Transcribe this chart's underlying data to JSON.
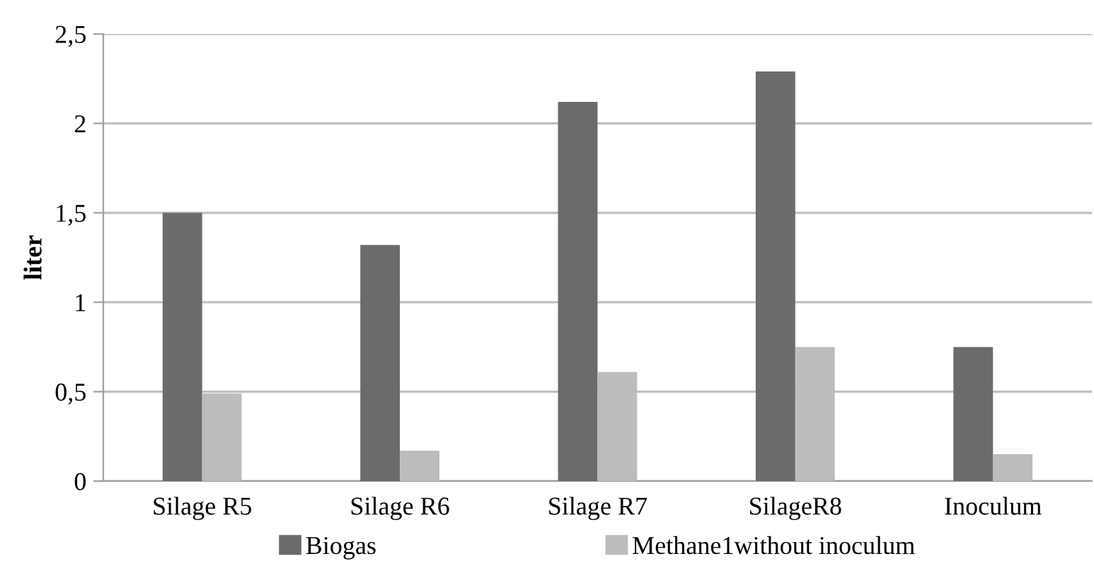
{
  "chart_data": {
    "type": "bar",
    "ylabel": "liter",
    "categories": [
      "Silage R5",
      "Silage R6",
      "Silage R7",
      "SilageR8",
      "Inoculum"
    ],
    "series": [
      {
        "name": "Biogas",
        "color": "#6b6b6b",
        "values": [
          1.5,
          1.32,
          2.12,
          2.29,
          0.75
        ]
      },
      {
        "name": "Methane1without inoculum",
        "color": "#bcbcbc",
        "values": [
          0.49,
          0.17,
          0.61,
          0.75,
          0.15
        ]
      }
    ],
    "ylim": [
      0,
      2.5
    ],
    "yticks": [
      0,
      {
        "value": 0.5,
        "label": "0,5"
      },
      1,
      {
        "value": 1.5,
        "label": "1,5"
      },
      2,
      {
        "value": 2.5,
        "label": "2,5"
      }
    ],
    "grid": "y",
    "legend": "bottom"
  }
}
